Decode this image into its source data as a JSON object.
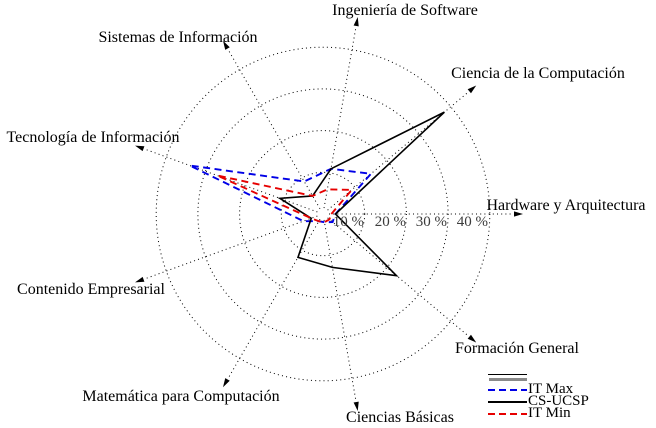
{
  "chart_data": {
    "type": "radar",
    "unit": "%",
    "rmax": 40,
    "ring_step": 10,
    "grid_style": "dotted",
    "legend_position": "bottom-right",
    "axes": [
      "Hardware y Arquitectura",
      "Ciencia de la Computación",
      "Ingeniería de Software",
      "Sistemas de Información",
      "Tecnología de Información",
      "Contenido Empresarial",
      "Matemática para Computación",
      "Ciencias Básicas",
      "Formación General"
    ],
    "angles_deg": [
      0,
      40,
      80,
      120,
      160,
      200,
      240,
      280,
      320
    ],
    "radial_ticks": [
      "10 %",
      "20 %",
      "30 %",
      "40 %"
    ],
    "radial_tick_values": [
      10,
      20,
      30,
      40
    ],
    "series": [
      {
        "name": "IT Max",
        "color": "#0000e6",
        "style": "dashed",
        "values": [
          3,
          15,
          11,
          9,
          34,
          5,
          2,
          2,
          3
        ]
      },
      {
        "name": "CS-UCSP",
        "color": "#000000",
        "style": "solid",
        "values": [
          3,
          38,
          11,
          5,
          11,
          3,
          12,
          13,
          23
        ]
      },
      {
        "name": "IT Min",
        "color": "#e60000",
        "style": "dashed",
        "values": [
          2,
          9,
          6,
          5,
          27,
          3,
          2,
          2,
          2
        ]
      }
    ]
  }
}
